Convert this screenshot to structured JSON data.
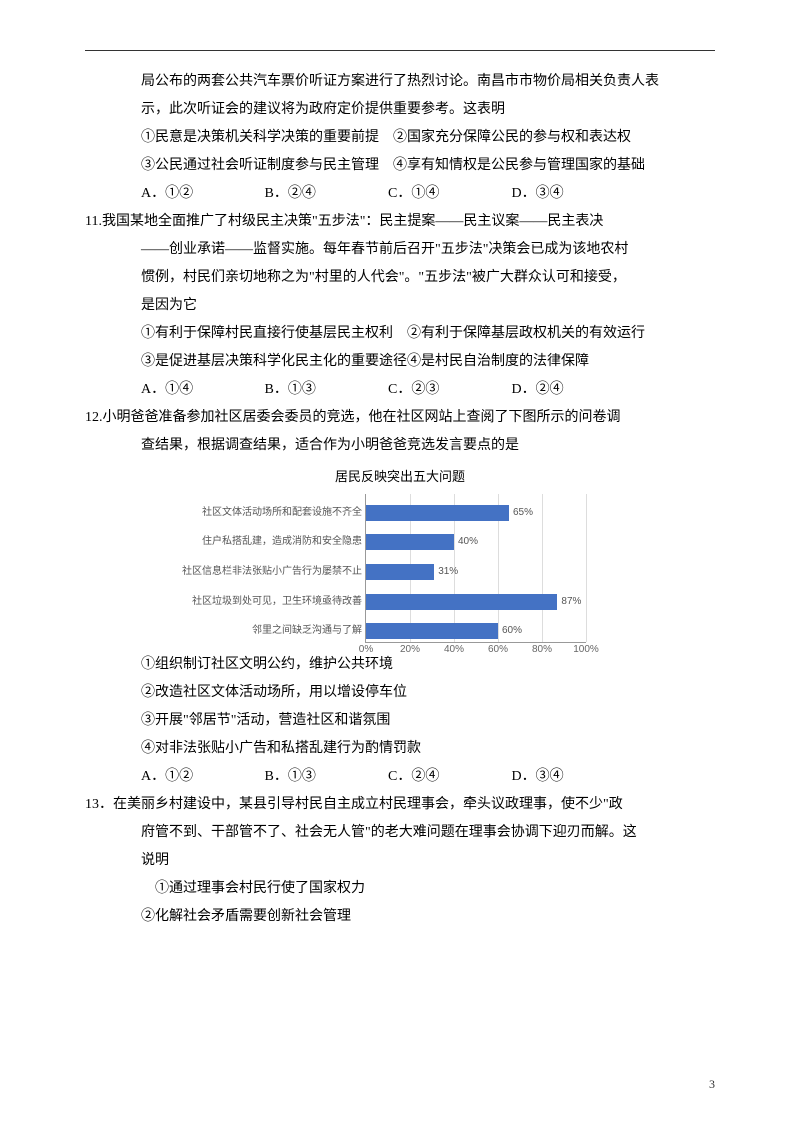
{
  "intro": {
    "line1": "局公布的两套公共汽车票价听证方案进行了热烈讨论。南昌市市物价局相关负责人表",
    "line2": "示，此次听证会的建议将为政府定价提供重要参考。这表明",
    "opt_line1": "①民意是决策机关科学决策的重要前提　②国家充分保障公民的参与权和表达权",
    "opt_line2": "③公民通过社会听证制度参与民主管理　④享有知情权是公民参与管理国家的基础",
    "choice_a": "A．①②",
    "choice_b": "B．②④",
    "choice_c": "C．①④",
    "choice_d": "D．③④"
  },
  "q11": {
    "line1": "11.我国某地全面推广了村级民主决策\"五步法\"：民主提案——民主议案——民主表决",
    "line2": "——创业承诺——监督实施。每年春节前后召开\"五步法\"决策会已成为该地农村",
    "line3": "惯例，村民们亲切地称之为\"村里的人代会\"。\"五步法\"被广大群众认可和接受，",
    "line4": "是因为它",
    "opt_line1": "①有利于保障村民直接行使基层民主权利　②有利于保障基层政权机关的有效运行",
    "opt_line2": "③是促进基层决策科学化民主化的重要途径④是村民自治制度的法律保障",
    "choice_a": "A．①④",
    "choice_b": "B．①③",
    "choice_c": "C．②③",
    "choice_d": "D．②④"
  },
  "q12": {
    "line1": "12.小明爸爸准备参加社区居委会委员的竞选，他在社区网站上查阅了下图所示的问卷调",
    "line2": "查结果，根据调查结果，适合作为小明爸爸竞选发言要点的是",
    "chart_title": "居民反映突出五大问题",
    "bars": [
      {
        "label": "社区文体活动场所和配套设施不齐全",
        "value": 65,
        "value_label": "65%"
      },
      {
        "label": "住户私搭乱建，造成消防和安全隐患",
        "value": 40,
        "value_label": "40%"
      },
      {
        "label": "社区信息栏非法张贴小广告行为屡禁不止",
        "value": 31,
        "value_label": "31%"
      },
      {
        "label": "社区垃圾到处可见，卫生环境亟待改善",
        "value": 87,
        "value_label": "87%"
      },
      {
        "label": "邻里之间缺乏沟通与了解",
        "value": 60,
        "value_label": "60%"
      }
    ],
    "xticks": [
      {
        "pos": 0,
        "label": "0%"
      },
      {
        "pos": 20,
        "label": "20%"
      },
      {
        "pos": 40,
        "label": "40%"
      },
      {
        "pos": 60,
        "label": "60%"
      },
      {
        "pos": 80,
        "label": "80%"
      },
      {
        "pos": 100,
        "label": "100%"
      }
    ],
    "bar_color": "#4472c4",
    "grid_color": "#dddddd",
    "opt1": "①组织制订社区文明公约，维护公共环境",
    "opt2": "②改造社区文体活动场所，用以增设停车位",
    "opt3": "③开展\"邻居节\"活动，营造社区和谐氛围",
    "opt4": "④对非法张贴小广告和私搭乱建行为酌情罚款",
    "choice_a": "A．①②",
    "choice_b": "B．①③",
    "choice_c": "C．②④",
    "choice_d": "D．③④"
  },
  "q13": {
    "line1": "13．在美丽乡村建设中，某县引导村民自主成立村民理事会，牵头议政理事，使不少\"政",
    "line2": "府管不到、干部管不了、社会无人管\"的老大难问题在理事会协调下迎刃而解。这",
    "line3": "说明",
    "opt1": "①通过理事会村民行使了国家权力",
    "opt2": "②化解社会矛盾需要创新社会管理"
  },
  "page_number": "3"
}
